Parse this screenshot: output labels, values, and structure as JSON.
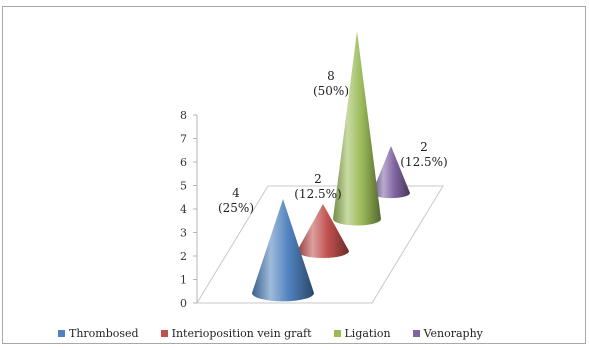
{
  "chart_data": {
    "type": "bar",
    "style": "3d-cone",
    "categories": [
      "Thrombosed",
      "Interioposition vein graft",
      "Ligation",
      "Venoraphy"
    ],
    "series": [
      {
        "values": [
          4,
          2,
          8,
          2
        ],
        "labels": [
          "4\n(25%)",
          "2\n(12.5%)",
          "8\n(50%)",
          "2\n(12.5%)"
        ],
        "colors": [
          "#4f81bd",
          "#c0504d",
          "#9bbb59",
          "#8064a2"
        ]
      }
    ],
    "yticks": [
      "0",
      "1",
      "2",
      "3",
      "4",
      "5",
      "6",
      "7",
      "8"
    ],
    "ylim": [
      0,
      8
    ],
    "grid": false,
    "legend_position": "bottom",
    "title": "",
    "xlabel": "",
    "ylabel": ""
  }
}
